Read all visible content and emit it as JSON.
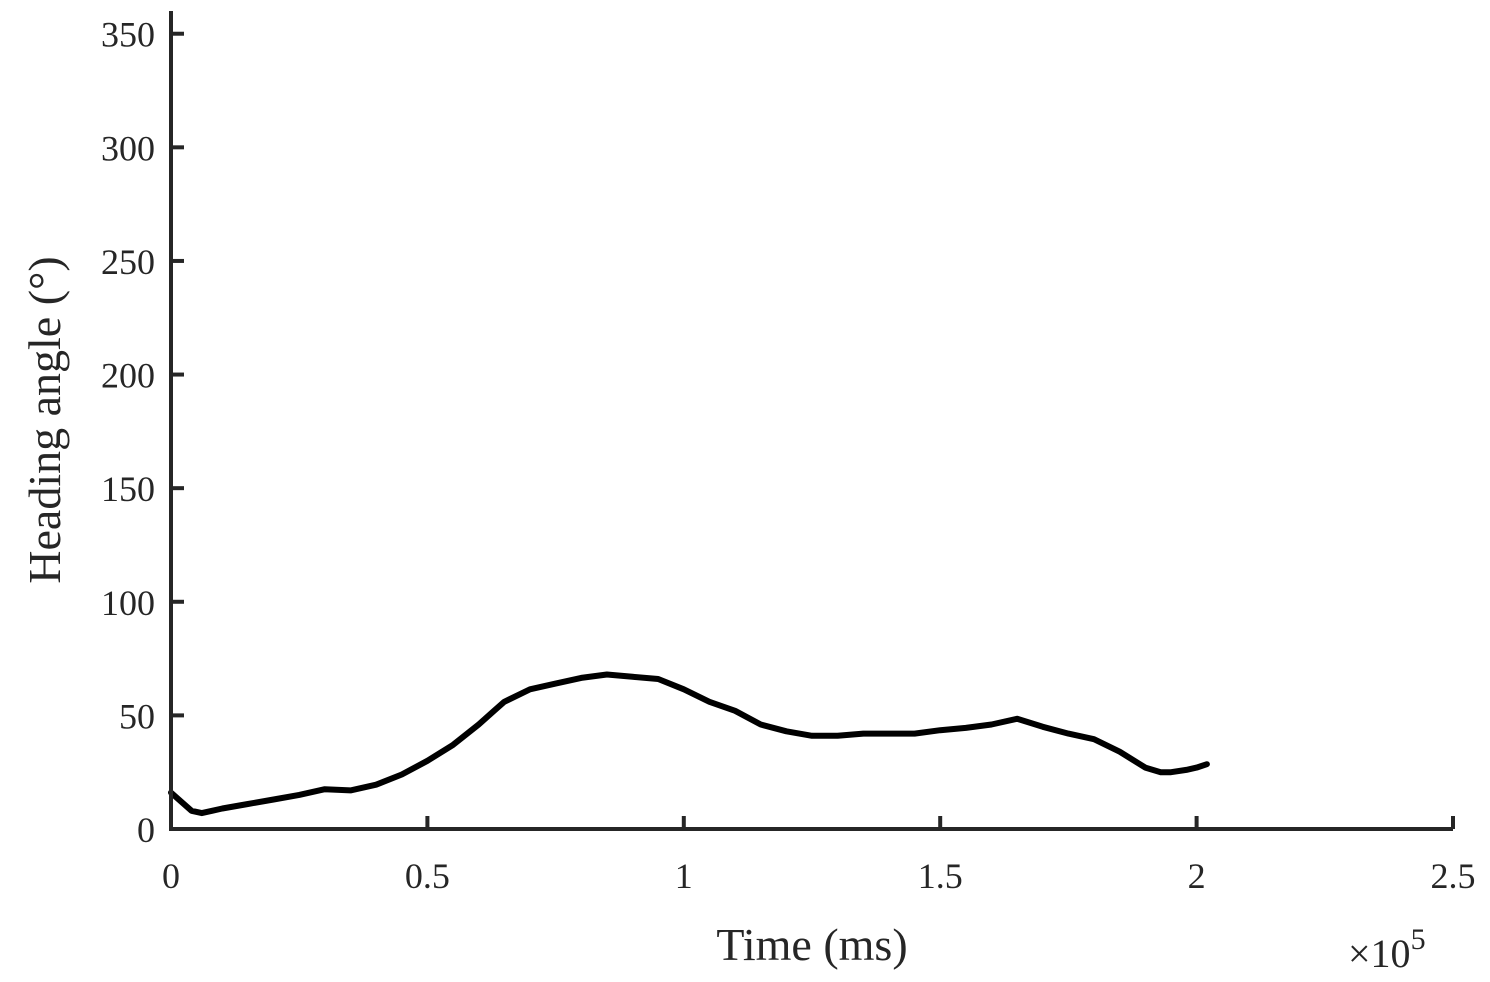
{
  "chart_data": {
    "type": "line",
    "xlabel": "Time (ms)",
    "ylabel": "Heading angle (°)",
    "x_exponent_label": {
      "times": "×10",
      "power": "5"
    },
    "xlim": [
      0,
      250000
    ],
    "ylim": [
      0,
      360
    ],
    "x_ticks": [
      0,
      50000,
      100000,
      150000,
      200000,
      250000
    ],
    "x_tick_labels": [
      "0",
      "0.5",
      "1",
      "1.5",
      "2",
      "2.5"
    ],
    "y_ticks": [
      0,
      50,
      100,
      150,
      200,
      250,
      300,
      350
    ],
    "y_tick_labels": [
      "0",
      "50",
      "100",
      "150",
      "200",
      "250",
      "300",
      "350"
    ],
    "grid": false,
    "series": [
      {
        "color": "#000000",
        "x": [
          0,
          2000,
          4000,
          6000,
          8000,
          10000,
          15000,
          20000,
          25000,
          30000,
          35000,
          40000,
          45000,
          50000,
          55000,
          60000,
          63000,
          65000,
          70000,
          75000,
          80000,
          85000,
          90000,
          95000,
          100000,
          105000,
          110000,
          115000,
          120000,
          125000,
          130000,
          135000,
          140000,
          145000,
          150000,
          155000,
          160000,
          165000,
          170000,
          175000,
          180000,
          185000,
          190000,
          193000,
          195000,
          198000,
          200000,
          202000
        ],
        "y": [
          16,
          12,
          8,
          7,
          8,
          9,
          11,
          13,
          15,
          17.5,
          17,
          19.5,
          24,
          30,
          37,
          46,
          52,
          56,
          61.5,
          64,
          66.5,
          68,
          67,
          66,
          61.5,
          56,
          52,
          46,
          43,
          41,
          41,
          42,
          42,
          42,
          43.5,
          44.5,
          46,
          48.5,
          45,
          42,
          39.5,
          34,
          27,
          25,
          25,
          26,
          27,
          28.5
        ]
      }
    ]
  }
}
